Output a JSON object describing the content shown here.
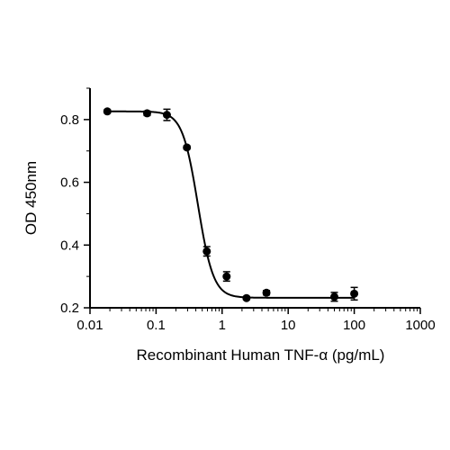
{
  "chart_data": {
    "type": "scatter",
    "xlabel": "Recombinant Human TNF-α (pg/mL)",
    "ylabel": "OD 450nm",
    "x_scale": "log",
    "xlim": [
      0.01,
      1000
    ],
    "ylim": [
      0.2,
      0.9
    ],
    "x_ticks": [
      "0.01",
      "0.1",
      "1",
      "10",
      "100",
      "1000"
    ],
    "y_ticks": [
      "0.2",
      "0.4",
      "0.6",
      "0.8"
    ],
    "grid": false,
    "legend": "none",
    "series": [
      {
        "points": [
          {
            "x": 0.0183,
            "y": 0.826,
            "err": 0.005
          },
          {
            "x": 0.0732,
            "y": 0.82,
            "err": 0.007
          },
          {
            "x": 0.146,
            "y": 0.815,
            "err": 0.018
          },
          {
            "x": 0.293,
            "y": 0.711,
            "err": 0.005
          },
          {
            "x": 0.586,
            "y": 0.38,
            "err": 0.015
          },
          {
            "x": 1.17,
            "y": 0.3,
            "err": 0.015
          },
          {
            "x": 2.34,
            "y": 0.231,
            "err": 0.005
          },
          {
            "x": 4.69,
            "y": 0.248,
            "err": 0.007
          },
          {
            "x": 50,
            "y": 0.235,
            "err": 0.014
          },
          {
            "x": 100,
            "y": 0.245,
            "err": 0.02
          }
        ]
      }
    ],
    "fit_curve": {
      "model": "4PL",
      "top": 0.826,
      "bottom": 0.232,
      "ec50": 0.43,
      "hill": 3.7
    },
    "colors": {
      "marks": "#000000",
      "background": "#ffffff"
    }
  }
}
